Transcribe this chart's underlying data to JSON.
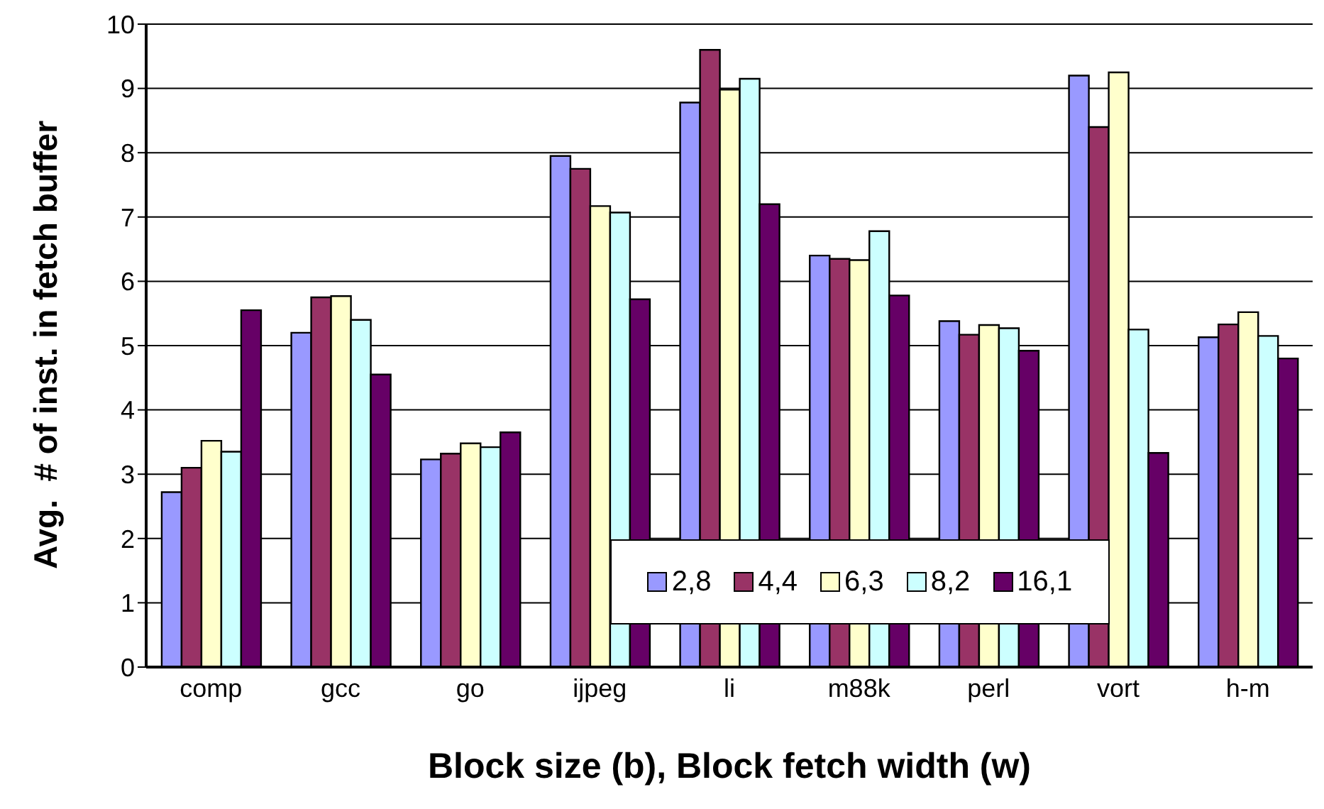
{
  "chart_data": {
    "type": "bar",
    "xlabel": "Block size (b), Block fetch width (w)",
    "ylabel": "Avg.  # of inst. in fetch buffer",
    "categories": [
      "comp",
      "gcc",
      "go",
      "ijpeg",
      "li",
      "m88k",
      "perl",
      "vort",
      "h-m"
    ],
    "series": [
      {
        "name": "2,8",
        "color": "#9999ff",
        "values": [
          2.72,
          5.2,
          3.23,
          7.95,
          8.78,
          6.4,
          5.38,
          9.2,
          5.13
        ]
      },
      {
        "name": "4,4",
        "color": "#993366",
        "values": [
          3.1,
          5.75,
          3.32,
          7.75,
          9.6,
          6.35,
          5.17,
          8.4,
          5.33
        ]
      },
      {
        "name": "6,3",
        "color": "#ffffcc",
        "values": [
          3.52,
          5.77,
          3.48,
          7.17,
          8.98,
          6.33,
          5.32,
          9.25,
          5.52
        ]
      },
      {
        "name": "8,2",
        "color": "#ccffff",
        "values": [
          3.35,
          5.4,
          3.42,
          7.07,
          9.15,
          6.78,
          5.27,
          5.25,
          5.15
        ]
      },
      {
        "name": "16,1",
        "color": "#660066",
        "values": [
          5.55,
          4.55,
          3.65,
          5.72,
          7.2,
          5.78,
          4.92,
          3.33,
          4.8
        ]
      }
    ],
    "ylim": [
      0,
      10
    ],
    "yticks": [
      0,
      1,
      2,
      3,
      4,
      5,
      6,
      7,
      8,
      9,
      10
    ],
    "grid": "y",
    "legend": "bottom"
  }
}
